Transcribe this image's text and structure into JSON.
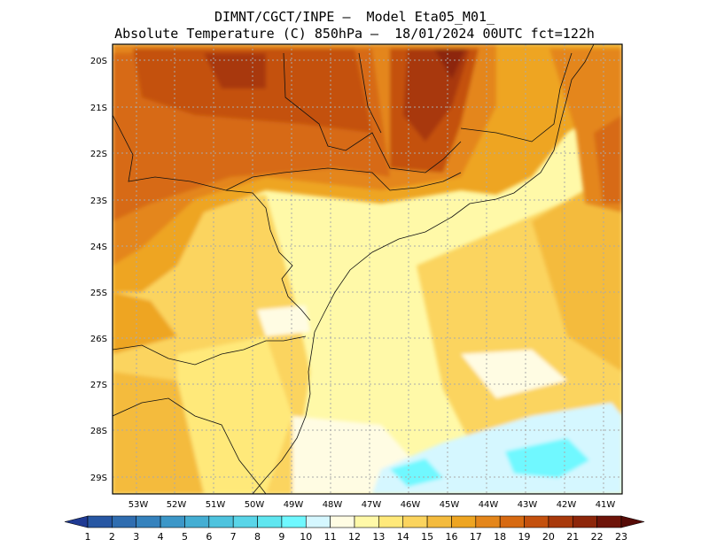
{
  "header": {
    "line1": "DIMNT/CGCT/INPE –  Model Eta05_M01_",
    "line2": "Absolute Temperature (C) 850hPa –  18/01/2024 00UTC fct=122h"
  },
  "map": {
    "lon_labels": [
      "53W",
      "52W",
      "51W",
      "50W",
      "49W",
      "48W",
      "47W",
      "46W",
      "45W",
      "44W",
      "43W",
      "42W",
      "41W"
    ],
    "lat_labels": [
      "20S",
      "21S",
      "22S",
      "23S",
      "24S",
      "25S",
      "26S",
      "27S",
      "28S",
      "29S"
    ]
  },
  "colorbar": {
    "labels": [
      "1",
      "2",
      "3",
      "4",
      "5",
      "6",
      "7",
      "8",
      "9",
      "10",
      "11",
      "12",
      "13",
      "14",
      "15",
      "16",
      "17",
      "18",
      "19",
      "20",
      "21",
      "22",
      "23"
    ],
    "colors": [
      "#1f3a93",
      "#2757a3",
      "#2f6db0",
      "#3582bd",
      "#3c97c8",
      "#44aed3",
      "#4ec3de",
      "#59d5e8",
      "#5fe6f0",
      "#6ff8ff",
      "#d5f7ff",
      "#fffce3",
      "#fff9a8",
      "#ffe97a",
      "#fbd45e",
      "#f4bb3e",
      "#eea522",
      "#e4861b",
      "#d76a12",
      "#c4510e",
      "#a8390b",
      "#8d260a",
      "#6e1409",
      "#560b07"
    ]
  }
}
